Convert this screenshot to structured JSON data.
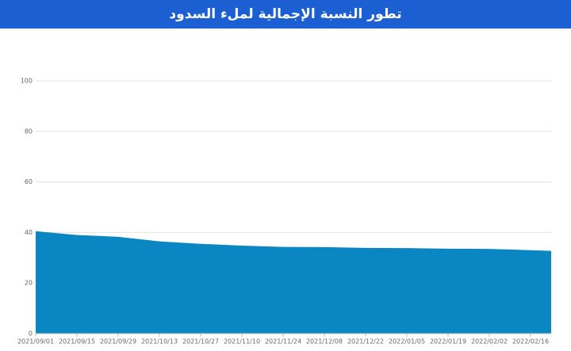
{
  "chart_data": {
    "type": "area",
    "title": "تطور النسبة الإجمالية لملء السدود",
    "x": [
      "2021/09/01",
      "2021/09/15",
      "2021/09/29",
      "2021/10/13",
      "2021/10/27",
      "2021/11/10",
      "2021/11/24",
      "2021/12/08",
      "2021/12/22",
      "2022/01/05",
      "2022/01/19",
      "2022/02/02",
      "2022/02/16",
      "2022/02/23"
    ],
    "values": [
      40.5,
      39,
      38.3,
      36.5,
      35.5,
      34.8,
      34.3,
      34.2,
      33.9,
      33.8,
      33.6,
      33.5,
      33.0,
      32.7
    ],
    "color": "#0a87c3",
    "xlim": [
      "2021/09/01",
      "2022/02/23"
    ],
    "xticks": [
      "2021/09/01",
      "2021/09/15",
      "2021/09/29",
      "2021/10/13",
      "2021/10/27",
      "2021/11/10",
      "2021/11/24",
      "2021/12/08",
      "2021/12/22",
      "2022/01/05",
      "2022/01/19",
      "2022/02/02",
      "2022/02/16"
    ],
    "ylim": [
      0,
      100
    ],
    "yticks": [
      0,
      20,
      40,
      60,
      80,
      100
    ],
    "grid": true
  }
}
